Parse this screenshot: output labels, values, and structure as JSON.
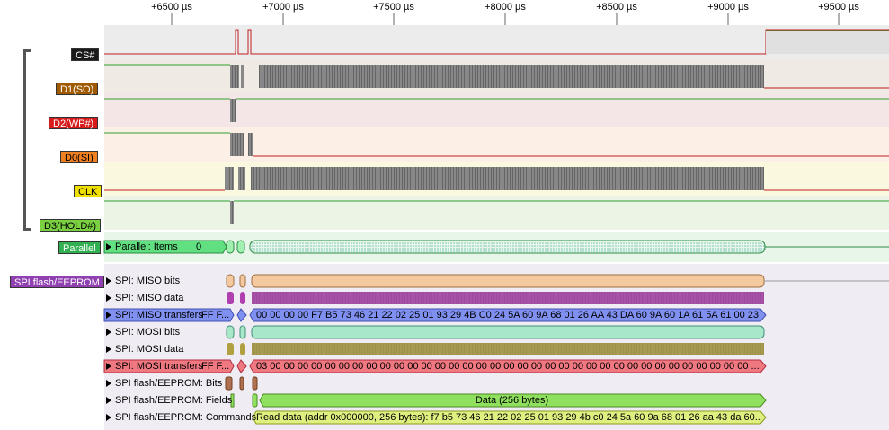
{
  "ruler": {
    "ticks": [
      "+6500 µs",
      "+7000 µs",
      "+7500 µs",
      "+8000 µs",
      "+8500 µs",
      "+9000 µs",
      "+9500 µs"
    ]
  },
  "channels": [
    {
      "name": "CS#",
      "color": "#1a1a1a",
      "text_color": "#ffffff"
    },
    {
      "name": "D1(SO)",
      "color": "#a05a00",
      "text_color": "#ffffff"
    },
    {
      "name": "D2(WP#)",
      "color": "#e02020",
      "text_color": "#ffffff"
    },
    {
      "name": "D0(SI)",
      "color": "#f08020",
      "text_color": "#000000"
    },
    {
      "name": "CLK",
      "color": "#f0e000",
      "text_color": "#000000"
    },
    {
      "name": "D3(HOLD#)",
      "color": "#7ad040",
      "text_color": "#000000"
    }
  ],
  "parallel": {
    "tag": "Parallel",
    "row_label": "Parallel: Items",
    "row_value": "0"
  },
  "spi": {
    "tag": "SPI flash/EEPROM",
    "rows": [
      {
        "label": "SPI: MISO bits",
        "text": ""
      },
      {
        "label": "SPI: MISO data",
        "text": ""
      },
      {
        "label": "SPI: MISO transfers",
        "short": "FF F...",
        "text": "00 00 00 00 F7 B5 73 46 21 22 02 25 01 93 29 4B C0 24 5A 60 9A 68 01 26 AA 43 DA 60 9A 60 1A 61 5A 61 00 23 ..."
      },
      {
        "label": "SPI: MOSI bits",
        "text": ""
      },
      {
        "label": "SPI: MOSI data",
        "text": ""
      },
      {
        "label": "SPI: MOSI transfers",
        "short": "FF F...",
        "text": "03 00 00 00 00 00 00 00 00 00 00 00 00 00 00 00 00 00 00 00 00 00 00 00 00 00 00 00 00 00 00 00 00 00 00 00 ..."
      },
      {
        "label": "SPI flash/EEPROM: Bits",
        "text": ""
      },
      {
        "label": "SPI flash/EEPROM: Fields",
        "text": "Data (256 bytes)"
      },
      {
        "label": "SPI flash/EEPROM: Commands",
        "text": "Read data (addr 0x000000, 256 bytes): f7 b5 73 46 21 22 02 25 01 93 29 4b c0 24 5a 60 9a 68 01 26 aa 43 da 60..."
      }
    ]
  },
  "colors": {
    "miso_bits": "#f5c9a0",
    "miso_data": "#b040b0",
    "miso_transfers": "#8090f0",
    "mosi_bits": "#a8e8c8",
    "mosi_data": "#b0a040",
    "mosi_transfers": "#f07880",
    "fields": "#90e060",
    "commands": "#e0f080",
    "parallel": "#60e080"
  }
}
